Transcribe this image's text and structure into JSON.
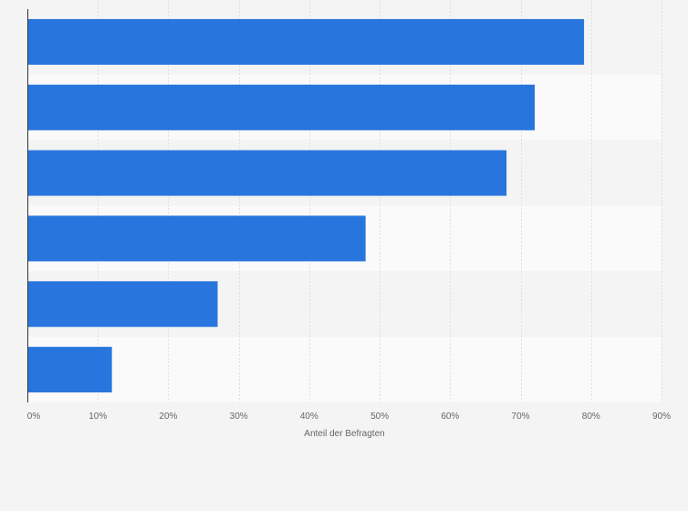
{
  "chart_data": {
    "type": "bar",
    "orientation": "horizontal",
    "categories": [
      "",
      "",
      "",
      "",
      "",
      ""
    ],
    "values": [
      79,
      72,
      68,
      48,
      27,
      12
    ],
    "xlabel": "Anteil der Befragten",
    "ylabel": "",
    "xlim": [
      0,
      90
    ],
    "xticks": [
      0,
      10,
      20,
      30,
      40,
      50,
      60,
      70,
      80,
      90
    ],
    "xtick_labels": [
      "0%",
      "10%",
      "20%",
      "30%",
      "40%",
      "50%",
      "60%",
      "70%",
      "80%",
      "90%"
    ],
    "grid": true,
    "legend": "none",
    "colors": {
      "bar": "#2876dd",
      "band_light": "#fafafa",
      "band_dark": "#f4f4f4",
      "grid": "#dedede",
      "axis": "#333333",
      "text": "#666666",
      "background": "#f4f4f4"
    }
  }
}
